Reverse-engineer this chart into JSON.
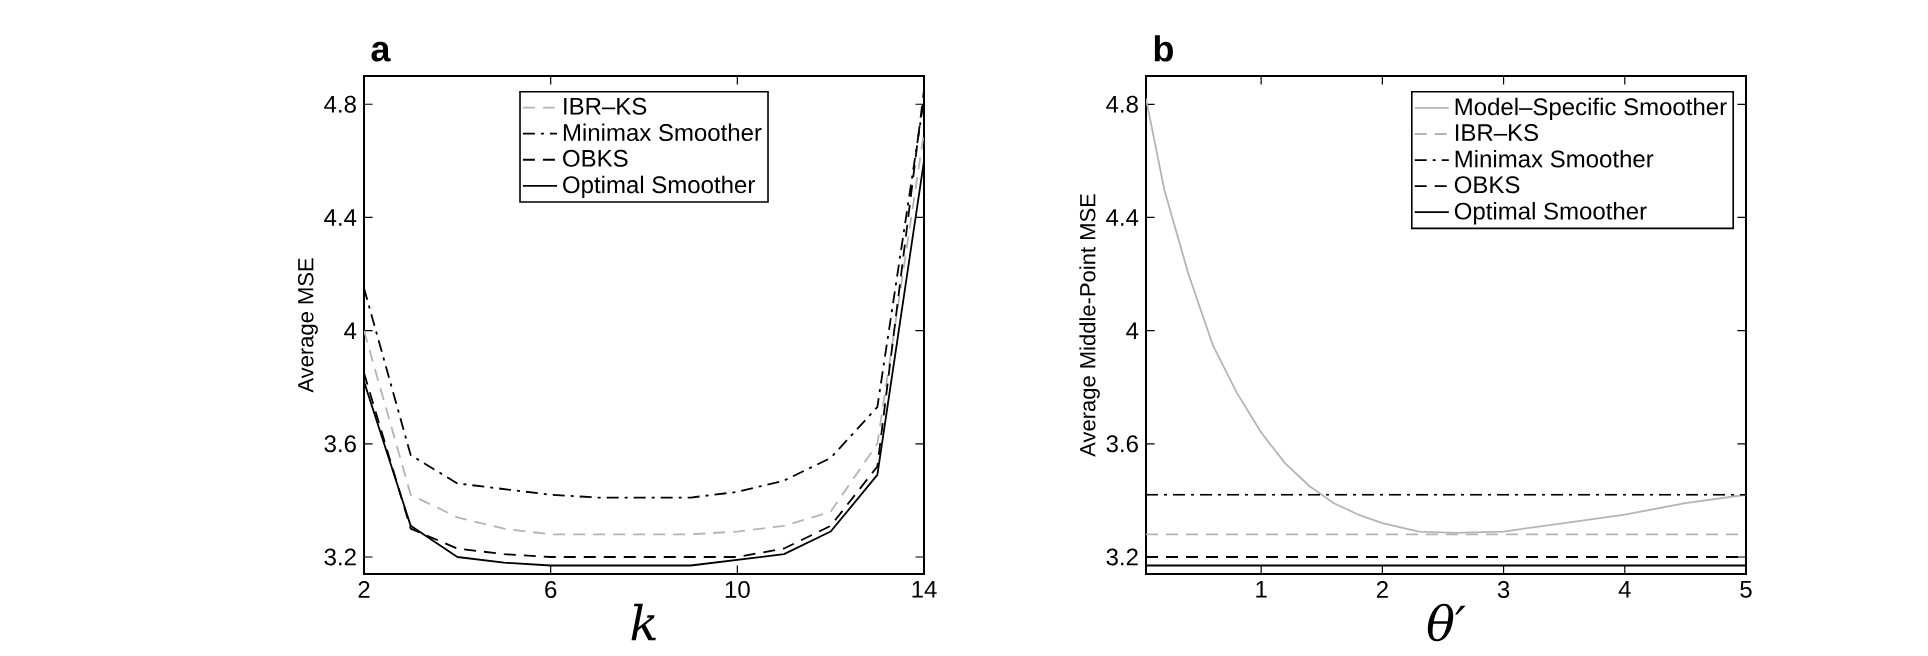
{
  "chart_data": [
    {
      "type": "line",
      "title": "a",
      "xlabel": "k",
      "ylabel": "Average MSE",
      "x": [
        2,
        3,
        4,
        5,
        6,
        7,
        8,
        9,
        10,
        11,
        12,
        13,
        14
      ],
      "xlim": [
        2,
        14
      ],
      "xticks": [
        2,
        6,
        10,
        14
      ],
      "ylim": [
        3.14,
        4.9
      ],
      "yticks": [
        3.2,
        3.6,
        4,
        4.4,
        4.8
      ],
      "grid": false,
      "legend": "top",
      "marker": "none",
      "series": [
        {
          "name": "IBR–KS",
          "color": "#b4b4b4",
          "line_style": "dashed",
          "values": [
            4.0,
            3.42,
            3.34,
            3.3,
            3.28,
            3.28,
            3.28,
            3.28,
            3.29,
            3.31,
            3.36,
            3.6,
            4.7
          ]
        },
        {
          "name": "Minimax Smoother",
          "color": "#000000",
          "line_style": "dashdot",
          "values": [
            4.15,
            3.56,
            3.46,
            3.44,
            3.42,
            3.41,
            3.41,
            3.41,
            3.43,
            3.47,
            3.55,
            3.73,
            4.82
          ]
        },
        {
          "name": "OBKS",
          "color": "#000000",
          "line_style": "dashed",
          "values": [
            3.85,
            3.3,
            3.23,
            3.21,
            3.2,
            3.2,
            3.2,
            3.2,
            3.2,
            3.23,
            3.31,
            3.52,
            4.85
          ]
        },
        {
          "name": "Optimal Smoother",
          "color": "#000000",
          "line_style": "solid",
          "values": [
            3.82,
            3.31,
            3.2,
            3.18,
            3.17,
            3.17,
            3.17,
            3.17,
            3.19,
            3.21,
            3.29,
            3.49,
            4.6
          ]
        }
      ]
    },
    {
      "type": "line",
      "title": "b",
      "xlabel": "θ′",
      "ylabel": "Average Middle-Point MSE",
      "xlim": [
        0.05,
        5
      ],
      "xticks": [
        1,
        2,
        3,
        4,
        5
      ],
      "ylim": [
        3.14,
        4.9
      ],
      "yticks": [
        3.2,
        3.6,
        4,
        4.4,
        4.8
      ],
      "grid": false,
      "legend": "top right",
      "marker": "none",
      "series": [
        {
          "name": "Model–Specific Smoother",
          "color": "#b4b4b4",
          "line_style": "solid",
          "x": [
            0.05,
            0.2,
            0.4,
            0.6,
            0.8,
            1.0,
            1.2,
            1.4,
            1.6,
            1.8,
            2.0,
            2.3,
            2.6,
            3.0,
            3.5,
            4.0,
            4.5,
            5.0
          ],
          "values": [
            4.82,
            4.5,
            4.2,
            3.95,
            3.78,
            3.64,
            3.53,
            3.45,
            3.39,
            3.35,
            3.32,
            3.29,
            3.285,
            3.29,
            3.32,
            3.35,
            3.39,
            3.42
          ]
        },
        {
          "name": "IBR–KS",
          "color": "#b4b4b4",
          "line_style": "dashed",
          "x": [
            0.05,
            5
          ],
          "values": [
            3.28,
            3.28
          ]
        },
        {
          "name": "Minimax Smoother",
          "color": "#000000",
          "line_style": "dashdot",
          "x": [
            0.05,
            5
          ],
          "values": [
            3.42,
            3.42
          ]
        },
        {
          "name": "OBKS",
          "color": "#000000",
          "line_style": "dashed",
          "x": [
            0.05,
            5
          ],
          "values": [
            3.2,
            3.2
          ]
        },
        {
          "name": "Optimal Smoother",
          "color": "#000000",
          "line_style": "solid",
          "x": [
            0.05,
            5
          ],
          "values": [
            3.17,
            3.17
          ]
        }
      ]
    }
  ]
}
